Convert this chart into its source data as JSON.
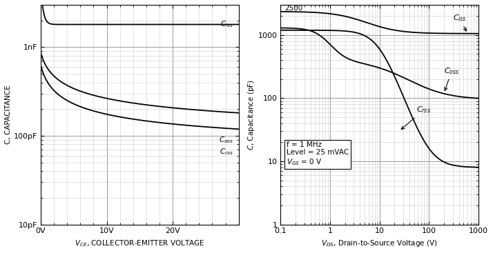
{
  "left": {
    "xlabel": "$V_{CE}$, COLLECTOR-EMITTER VOLTAGE",
    "ylabel": "C, CAPACITANCE",
    "xlim": [
      0,
      30
    ],
    "xticks": [
      0,
      10,
      20
    ],
    "xticklabels": [
      "0V",
      "10V",
      "20V"
    ],
    "ytick_labels": [
      "10pF",
      "100pF",
      "1nF"
    ],
    "ytick_vals": [
      1e-11,
      1e-10,
      1e-09
    ],
    "ciss_label": "$C_{iss}$",
    "coss_label": "$C_{oss}$",
    "crss_label": "$C_{rss}$"
  },
  "right": {
    "xlabel": "$V_{DS}$, Drain-to-Source Voltage (V)",
    "ylabel": "$C$, Capacitance (pF)",
    "xticklabels": [
      "0.1",
      "1",
      "10",
      "100",
      "1000"
    ],
    "ytick_vals": [
      1,
      10,
      100,
      1000
    ],
    "yticklabels": [
      "1",
      "10",
      "100",
      "1000"
    ],
    "annotation_line1": "f = 1 MHz",
    "annotation_line2": "Level = 25 mVAC",
    "annotation_line3": "$V_{GS}$ = 0 V",
    "ciss_label": "$C_{iss}$",
    "coss_label": "$C_{oss}$",
    "crss_label": "$C_{rss}$"
  },
  "bg_color": "#ffffff",
  "line_color": "black",
  "grid_major_color": "#999999",
  "grid_minor_color": "#cccccc"
}
